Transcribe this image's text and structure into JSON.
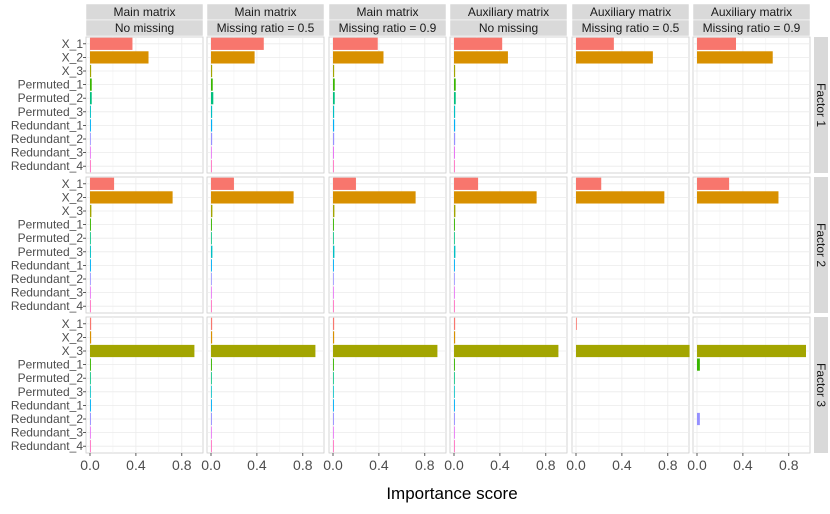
{
  "chart_data": {
    "type": "bar",
    "orientation": "horizontal",
    "xlabel": "Importance score",
    "xlim": [
      0,
      0.95
    ],
    "xticks": [
      0.0,
      0.4,
      0.8
    ],
    "xtick_labels": [
      "0.0",
      "0.4",
      "0.8"
    ],
    "grid": true,
    "categories": [
      "X_1",
      "X_2",
      "X_3",
      "Permuted_1",
      "Permuted_2",
      "Permuted_3",
      "Redundant_1",
      "Redundant_2",
      "Redundant_3",
      "Redundant_4"
    ],
    "category_colors": [
      "#F8766D",
      "#D89000",
      "#A3A500",
      "#39B600",
      "#00BF7D",
      "#00BFC4",
      "#00B0F6",
      "#9590FF",
      "#E76BF3",
      "#FF62BC"
    ],
    "columns": [
      {
        "top": "Main matrix",
        "bottom": "No missing"
      },
      {
        "top": "Main matrix",
        "bottom": "Missing ratio = 0.5"
      },
      {
        "top": "Main matrix",
        "bottom": "Missing ratio = 0.9"
      },
      {
        "top": "Auxiliary matrix",
        "bottom": "No missing"
      },
      {
        "top": "Auxiliary matrix",
        "bottom": "Missing ratio = 0.5"
      },
      {
        "top": "Auxiliary matrix",
        "bottom": "Missing ratio = 0.9"
      }
    ],
    "rows": [
      "Factor 1",
      "Factor 2",
      "Factor 3"
    ],
    "values": [
      [
        [
          0.37,
          0.51,
          0.01,
          0.015,
          0.015,
          0.008,
          0.008,
          0.006,
          0.005,
          0.004
        ],
        [
          0.46,
          0.38,
          0.01,
          0.015,
          0.02,
          0.01,
          0.01,
          0.01,
          0.006,
          0.004
        ],
        [
          0.39,
          0.44,
          0.01,
          0.015,
          0.015,
          0.01,
          0.01,
          0.01,
          0.008,
          0.004
        ],
        [
          0.42,
          0.47,
          0.01,
          0.015,
          0.015,
          0.01,
          0.01,
          0.01,
          0.008,
          0.004
        ],
        [
          0.33,
          0.67,
          0,
          0,
          0,
          0,
          0,
          0,
          0,
          0
        ],
        [
          0.34,
          0.66,
          0,
          0,
          0,
          0,
          0,
          0,
          0,
          0
        ]
      ],
      [
        [
          0.21,
          0.72,
          0.012,
          0.008,
          0.006,
          0.008,
          0.008,
          0.005,
          0.004,
          0.004
        ],
        [
          0.2,
          0.72,
          0.012,
          0.008,
          0.006,
          0.012,
          0.008,
          0.005,
          0.004,
          0.004
        ],
        [
          0.2,
          0.72,
          0.012,
          0.008,
          0.006,
          0.012,
          0.008,
          0.005,
          0.004,
          0.004
        ],
        [
          0.21,
          0.72,
          0.012,
          0.008,
          0.006,
          0.012,
          0.008,
          0.005,
          0.004,
          0.004
        ],
        [
          0.22,
          0.77,
          0,
          0,
          0,
          0,
          0,
          0,
          0,
          0
        ],
        [
          0.28,
          0.71,
          0,
          0,
          0,
          0,
          0,
          0,
          0,
          0
        ]
      ],
      [
        [
          0.01,
          0.01,
          0.91,
          0.008,
          0.006,
          0.006,
          0.008,
          0.008,
          0.006,
          0.004
        ],
        [
          0.01,
          0.01,
          0.91,
          0.008,
          0.006,
          0.006,
          0.008,
          0.008,
          0.006,
          0.004
        ],
        [
          0.01,
          0.01,
          0.91,
          0.008,
          0.006,
          0.006,
          0.008,
          0.008,
          0.006,
          0.004
        ],
        [
          0.01,
          0.01,
          0.91,
          0.008,
          0.006,
          0.006,
          0.008,
          0.008,
          0.006,
          0.004
        ],
        [
          0.005,
          0,
          0.99,
          0,
          0,
          0,
          0,
          0,
          0,
          0
        ],
        [
          0,
          0,
          0.95,
          0.025,
          0,
          0,
          0,
          0.025,
          0,
          0
        ]
      ]
    ]
  }
}
